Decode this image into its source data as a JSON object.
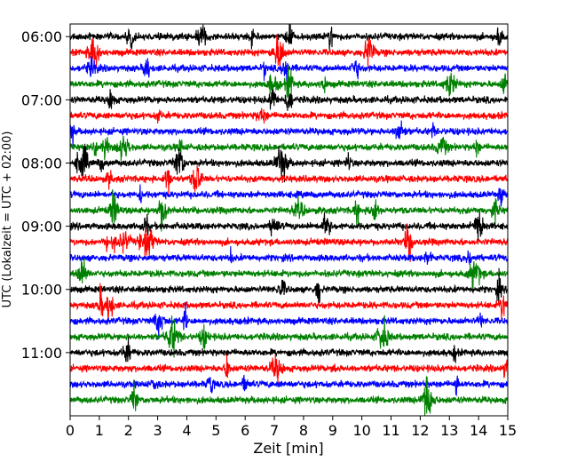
{
  "chart_data": {
    "type": "line",
    "title": "",
    "xlabel": "Zeit  [min]",
    "ylabel": "UTC (Lokalzeit = UTC + 02:00)",
    "xlim": [
      0,
      15
    ],
    "xticks": [
      "0",
      "1",
      "2",
      "3",
      "4",
      "5",
      "6",
      "7",
      "8",
      "9",
      "10",
      "11",
      "12",
      "13",
      "14",
      "15"
    ],
    "yticks": [
      "06:00",
      "07:00",
      "08:00",
      "09:00",
      "10:00",
      "11:00"
    ],
    "ytick_hours": [
      6,
      7,
      8,
      9,
      10,
      11
    ],
    "ylim_hours": [
      5.8,
      12.0
    ],
    "trace_interval_min": 15,
    "first_trace_start": "06:00",
    "last_trace_start": "11:45",
    "trace_count": 24,
    "trace_colors_cycle": [
      "#000000",
      "#ff0000",
      "#0000ff",
      "#008000"
    ],
    "grid": false,
    "legend": "none"
  }
}
